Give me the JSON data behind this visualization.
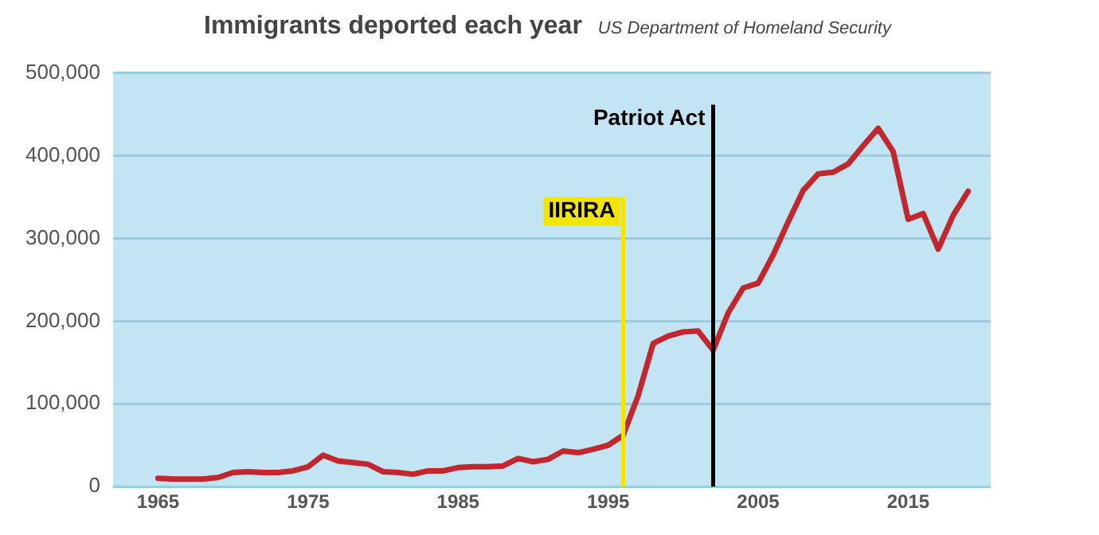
{
  "chart_data": {
    "type": "line",
    "title": "Immigrants deported each year",
    "subtitle": "US Department of Homeland Security",
    "x": [
      1965,
      1966,
      1967,
      1968,
      1969,
      1970,
      1971,
      1972,
      1973,
      1974,
      1975,
      1976,
      1977,
      1978,
      1979,
      1980,
      1981,
      1982,
      1983,
      1984,
      1985,
      1986,
      1987,
      1988,
      1989,
      1990,
      1991,
      1992,
      1993,
      1994,
      1995,
      1996,
      1997,
      1998,
      1999,
      2000,
      2001,
      2002,
      2003,
      2004,
      2005,
      2006,
      2007,
      2008,
      2009,
      2010,
      2011,
      2012,
      2013,
      2014,
      2015,
      2016,
      2017,
      2018,
      2019
    ],
    "series": [
      {
        "color": "#c1272d",
        "values": [
          10000,
          9000,
          9000,
          9000,
          11000,
          17000,
          18000,
          17000,
          17000,
          19000,
          24000,
          38000,
          31000,
          29000,
          27000,
          18000,
          17000,
          15000,
          19000,
          19000,
          23000,
          24000,
          24000,
          25000,
          34000,
          30000,
          33000,
          43000,
          41000,
          45000,
          50000,
          62000,
          110000,
          173000,
          182000,
          187000,
          188000,
          165000,
          210000,
          240000,
          246000,
          280000,
          320000,
          358000,
          378000,
          380000,
          390000,
          412000,
          433000,
          405000,
          323000,
          330000,
          287000,
          328000,
          357000
        ]
      }
    ],
    "xlim": [
      1962,
      2020.5
    ],
    "ylim": [
      0,
      500000
    ],
    "xticks": [
      1965,
      1975,
      1985,
      1995,
      2005,
      2015
    ],
    "yticks": [
      {
        "value": 0,
        "label": "0"
      },
      {
        "value": 100000,
        "label": "100,000"
      },
      {
        "value": 200000,
        "label": "200,000"
      },
      {
        "value": 300000,
        "label": "300,000"
      },
      {
        "value": 400000,
        "label": "400,000"
      },
      {
        "value": 500000,
        "label": "500,000"
      }
    ],
    "grid": "y",
    "marker": "none",
    "line_style": "solid",
    "legend": false,
    "ref_lines": [
      {
        "axis": "x",
        "value": 1996,
        "label": "IIRIRA",
        "color": "#f2e600"
      },
      {
        "axis": "x",
        "value": 2002,
        "label": "Patriot Act",
        "color": "#000000"
      }
    ]
  }
}
